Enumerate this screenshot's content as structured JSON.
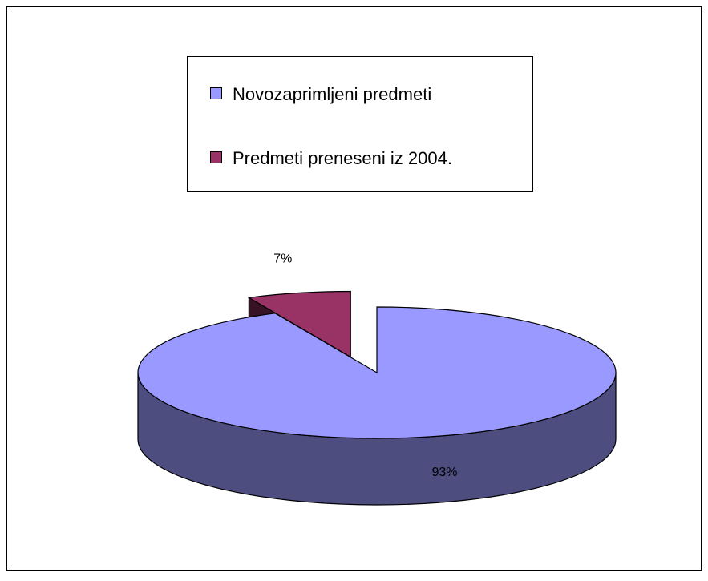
{
  "chart_data": {
    "type": "pie3d",
    "categories": [
      "Novozaprimljeni predmeti",
      "Predmeti preneseni iz 2004."
    ],
    "values": [
      93,
      7
    ],
    "value_labels": [
      "93%",
      "7%"
    ],
    "colors": [
      "#9999ff",
      "#993366"
    ],
    "legend": "top"
  }
}
